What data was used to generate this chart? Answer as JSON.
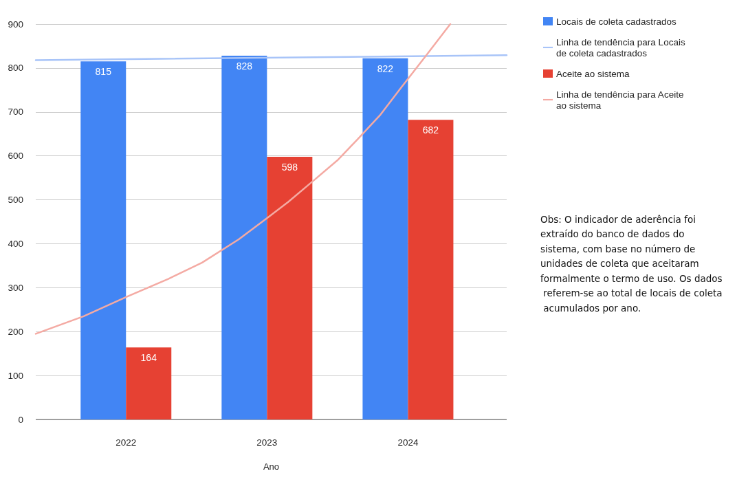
{
  "chart_data": {
    "type": "bar",
    "xlabel": "Ano",
    "x": [
      2022,
      2023,
      2024
    ],
    "xlim": [
      2021.36,
      2024.7
    ],
    "xticks": [
      2022,
      2023,
      2024
    ],
    "ylim": [
      0,
      900
    ],
    "yticks": [
      0,
      100,
      200,
      300,
      400,
      500,
      600,
      700,
      800,
      900
    ],
    "grid": "y",
    "legend": "top right",
    "annotations": [
      "Obs: O indicador de aderência foi extraído do banco de dados do sistema, com base no número de unidades de coleta que aceitaram formalmente o termo de uso. Os dados referem-se ao total de locais de coleta acumulados por ano."
    ],
    "series": [
      {
        "name": "Locais de coleta cadastrados",
        "color": "#4285f4",
        "values": [
          815,
          828,
          822
        ],
        "value_labels": [
          "815",
          "828",
          "822"
        ]
      },
      {
        "name": "Linha de tendência para Locais de coleta cadastrados",
        "type": "line",
        "color": "#a8c4f8",
        "x": [
          2021.36,
          2024.7
        ],
        "values": [
          818,
          829
        ]
      },
      {
        "name": "Aceite ao sistema",
        "color": "#e64133",
        "values": [
          164,
          598,
          682
        ],
        "value_labels": [
          "164",
          "598",
          "682"
        ]
      },
      {
        "name": "Linha de tendência para Aceite ao sistema",
        "type": "line",
        "color": "#f4aaa3",
        "x": [
          2021.36,
          2021.7,
          2022.01,
          2022.3,
          2022.54,
          2022.8,
          2022.995,
          2023.15,
          2023.32,
          2023.5,
          2023.64,
          2023.8,
          2023.95,
          2024.12,
          2024.3
        ],
        "values": [
          195,
          235,
          280,
          320,
          357,
          410,
          457,
          495,
          541,
          590,
          637,
          692,
          755,
          825,
          900
        ]
      }
    ]
  }
}
